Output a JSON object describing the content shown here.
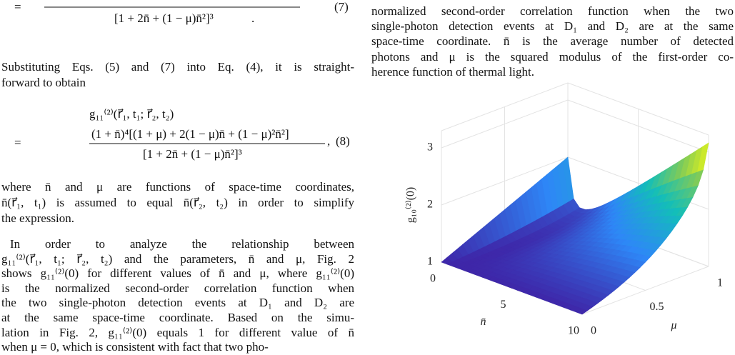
{
  "equation_7": {
    "equals": "=",
    "denominator": "[1 + 2n̄ + (1 − μ)n̄²]³",
    "period": ".",
    "tag": "(7)"
  },
  "paragraph_1": [
    "Substituting Eqs. (5) and (7) into Eq. (4), it is straight-",
    "forward to obtain"
  ],
  "equation_8": {
    "lhs": "g₁₁⁽²⁾(r⃗₁, t₁; r⃗₂, t₂)",
    "equals": "=",
    "numerator": "(1 + n̄)⁴[(1 + μ) + 2(1 − μ)n̄ + (1 − μ)²n̄²]",
    "denominator": "[1 + 2n̄ + (1 − μ)n̄²]³",
    "comma": ",",
    "tag": "(8)"
  },
  "paragraph_2": [
    "where n̄ and μ are functions of space-time coordinates,",
    "n̄(r⃗₁, t₁) is assumed to equal n̄(r⃗₂, t₂) in order to simplify",
    "the expression."
  ],
  "paragraph_3": [
    "In order to analyze the relationship between",
    "g₁₁⁽²⁾(r⃗₁, t₁; r⃗₂, t₂) and the parameters, n̄ and μ, Fig. 2",
    "shows g₁₁⁽²⁾(0) for different values of n̄ and μ, where g₁₁⁽²⁾(0)",
    "is the normalized second-order correlation function when",
    "the two single-photon detection events at D₁ and D₂ are",
    "at the same space-time coordinate. Based on the simu-",
    "lation in Fig. 2, g₁₁⁽²⁾(0) equals 1 for different value of n̄",
    "when μ = 0, which is consistent with fact that two pho-"
  ],
  "caption": [
    "normalized second-order correlation function when the two",
    "single-photon detection events at D₁ and D₂ are at the same",
    "space-time coordinate. n̄ is the average number of detected",
    "photons and μ is the squared modulus of the first-order co-",
    "herence function of thermal light."
  ],
  "figure": {
    "z_ticks": [
      "1",
      "2",
      "3"
    ],
    "z_label": "g₁₀⁽²⁾(0)",
    "n_ticks": [
      "0",
      "5",
      "10"
    ],
    "n_label": "n̄",
    "mu_ticks": [
      "0",
      "0.5",
      "1"
    ],
    "mu_label": "μ"
  }
}
